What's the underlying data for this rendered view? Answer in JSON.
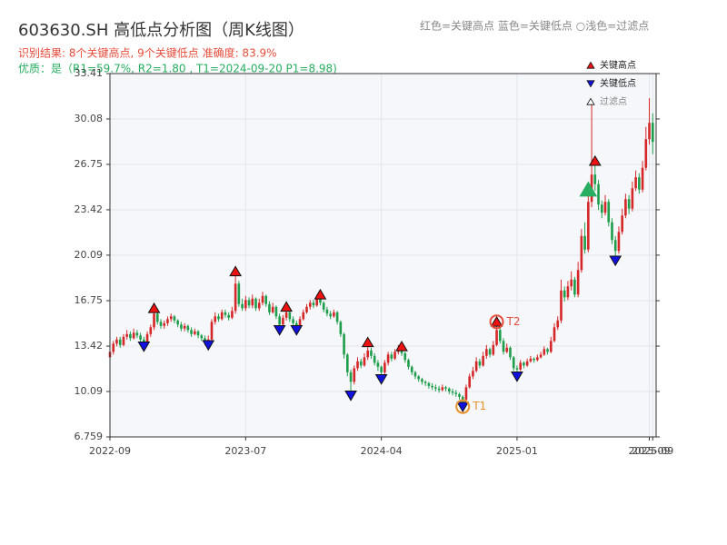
{
  "chart_data": {
    "type": "candlestick",
    "title": "603630.SH 高低点分析图（周K线图）",
    "subtitle": "识别结果: 8个关键高点, 9个关键低点  准确度: 83.9%",
    "note": "优质：是（R1=59.7%, R2=1.80 , T1=2024-09-20 P1=8.98)",
    "color_note": "红色=关键高点    蓝色=关键低点  ○浅色=过滤点",
    "up_color": "#d62728",
    "down_color": "#1e9e4a",
    "grid": true,
    "xlim": [
      0,
      161
    ],
    "xticks": [
      {
        "value": 0,
        "label": "2022-09"
      },
      {
        "value": 40,
        "label": "2023-07"
      },
      {
        "value": 80,
        "label": "2024-04"
      },
      {
        "value": 120,
        "label": "2025-01"
      },
      {
        "value": 159,
        "label": "2025-09"
      },
      {
        "value": 160,
        "label": "2025-09"
      }
    ],
    "ylim": [
      6.759,
      33.41
    ],
    "yticks": [
      6.759,
      10.09,
      13.42,
      16.75,
      20.09,
      23.42,
      26.75,
      30.08,
      33.41
    ],
    "ohlc": [
      [
        12.6,
        13.2,
        12.3,
        13.0
      ],
      [
        13.0,
        13.8,
        12.8,
        13.6
      ],
      [
        13.6,
        14.1,
        13.4,
        13.9
      ],
      [
        13.9,
        14.1,
        13.3,
        13.5
      ],
      [
        13.5,
        14.3,
        13.4,
        14.1
      ],
      [
        14.1,
        14.6,
        13.9,
        14.3
      ],
      [
        14.3,
        14.5,
        13.8,
        14.0
      ],
      [
        14.0,
        14.7,
        13.9,
        14.4
      ],
      [
        14.4,
        14.6,
        14.0,
        14.2
      ],
      [
        14.2,
        14.4,
        13.7,
        13.9
      ],
      [
        13.9,
        14.1,
        13.4,
        13.6
      ],
      [
        13.6,
        14.5,
        13.5,
        14.3
      ],
      [
        14.3,
        15.0,
        14.1,
        14.8
      ],
      [
        14.8,
        16.2,
        14.6,
        15.8
      ],
      [
        15.8,
        16.0,
        15.0,
        15.2
      ],
      [
        15.2,
        15.4,
        14.7,
        14.9
      ],
      [
        14.9,
        15.3,
        14.7,
        15.1
      ],
      [
        15.1,
        15.6,
        14.9,
        15.4
      ],
      [
        15.4,
        15.8,
        15.2,
        15.6
      ],
      [
        15.6,
        15.7,
        15.1,
        15.3
      ],
      [
        15.3,
        15.4,
        14.8,
        15.0
      ],
      [
        15.0,
        15.2,
        14.5,
        14.7
      ],
      [
        14.7,
        15.1,
        14.5,
        14.9
      ],
      [
        14.9,
        15.0,
        14.4,
        14.6
      ],
      [
        14.6,
        14.8,
        14.1,
        14.3
      ],
      [
        14.3,
        14.7,
        14.2,
        14.5
      ],
      [
        14.5,
        14.6,
        14.0,
        14.2
      ],
      [
        14.2,
        14.3,
        13.8,
        14.0
      ],
      [
        14.0,
        14.2,
        13.5,
        13.8
      ],
      [
        13.8,
        14.2,
        13.5,
        13.9
      ],
      [
        13.9,
        15.4,
        13.8,
        15.2
      ],
      [
        15.2,
        15.9,
        15.0,
        15.6
      ],
      [
        15.6,
        15.8,
        15.2,
        15.4
      ],
      [
        15.4,
        16.1,
        15.3,
        15.9
      ],
      [
        15.9,
        16.1,
        15.5,
        15.7
      ],
      [
        15.7,
        15.9,
        15.3,
        15.5
      ],
      [
        15.5,
        16.3,
        15.4,
        16.0
      ],
      [
        16.0,
        18.9,
        15.8,
        18.0
      ],
      [
        18.0,
        18.2,
        16.3,
        16.5
      ],
      [
        16.5,
        16.9,
        16.0,
        16.2
      ],
      [
        16.2,
        17.1,
        16.0,
        16.8
      ],
      [
        16.8,
        17.0,
        16.2,
        16.4
      ],
      [
        16.4,
        17.2,
        16.2,
        16.9
      ],
      [
        16.9,
        17.0,
        16.0,
        16.2
      ],
      [
        16.2,
        16.9,
        16.0,
        16.6
      ],
      [
        16.6,
        17.4,
        16.4,
        17.1
      ],
      [
        17.1,
        17.2,
        16.3,
        16.5
      ],
      [
        16.5,
        16.7,
        15.7,
        15.9
      ],
      [
        15.9,
        16.6,
        15.8,
        16.3
      ],
      [
        16.3,
        16.4,
        15.4,
        15.6
      ],
      [
        15.6,
        15.8,
        14.6,
        15.0
      ],
      [
        15.0,
        15.7,
        14.9,
        15.5
      ],
      [
        15.5,
        16.3,
        15.3,
        15.9
      ],
      [
        15.9,
        16.0,
        15.2,
        15.4
      ],
      [
        15.4,
        15.6,
        14.9,
        15.1
      ],
      [
        15.1,
        15.3,
        14.6,
        14.9
      ],
      [
        14.9,
        15.6,
        14.8,
        15.4
      ],
      [
        15.4,
        16.1,
        15.3,
        15.9
      ],
      [
        15.9,
        16.5,
        15.8,
        16.3
      ],
      [
        16.3,
        16.8,
        16.1,
        16.6
      ],
      [
        16.6,
        16.8,
        16.2,
        16.4
      ],
      [
        16.4,
        17.2,
        16.3,
        16.9
      ],
      [
        16.9,
        17.2,
        16.4,
        16.6
      ],
      [
        16.6,
        16.7,
        15.9,
        16.1
      ],
      [
        16.1,
        16.3,
        15.6,
        15.8
      ],
      [
        15.8,
        16.0,
        15.4,
        15.6
      ],
      [
        15.6,
        16.1,
        15.5,
        15.9
      ],
      [
        15.9,
        16.0,
        15.0,
        15.2
      ],
      [
        15.2,
        15.3,
        14.1,
        14.3
      ],
      [
        14.3,
        14.4,
        12.5,
        12.8
      ],
      [
        12.8,
        12.9,
        11.2,
        11.5
      ],
      [
        11.5,
        11.7,
        9.8,
        10.8
      ],
      [
        10.8,
        12.0,
        10.6,
        11.8
      ],
      [
        11.8,
        12.6,
        11.6,
        12.3
      ],
      [
        12.3,
        12.5,
        11.8,
        12.0
      ],
      [
        12.0,
        12.9,
        11.9,
        12.6
      ],
      [
        12.6,
        13.7,
        12.4,
        13.1
      ],
      [
        13.1,
        13.3,
        12.5,
        12.7
      ],
      [
        12.7,
        12.9,
        12.0,
        12.2
      ],
      [
        12.2,
        12.4,
        11.6,
        11.9
      ],
      [
        11.9,
        12.0,
        11.0,
        11.5
      ],
      [
        11.5,
        12.4,
        11.3,
        12.2
      ],
      [
        12.2,
        13.0,
        12.0,
        12.8
      ],
      [
        12.8,
        13.0,
        12.3,
        12.5
      ],
      [
        12.5,
        13.2,
        12.4,
        13.0
      ],
      [
        13.0,
        13.5,
        12.8,
        13.3
      ],
      [
        13.3,
        13.4,
        12.7,
        12.9
      ],
      [
        12.9,
        13.0,
        12.2,
        12.4
      ],
      [
        12.4,
        12.5,
        11.7,
        11.9
      ],
      [
        11.9,
        12.0,
        11.3,
        11.5
      ],
      [
        11.5,
        11.6,
        11.0,
        11.2
      ],
      [
        11.2,
        11.3,
        10.8,
        11.0
      ],
      [
        11.0,
        11.1,
        10.6,
        10.8
      ],
      [
        10.8,
        10.9,
        10.5,
        10.7
      ],
      [
        10.7,
        10.8,
        10.3,
        10.5
      ],
      [
        10.5,
        10.7,
        10.2,
        10.4
      ],
      [
        10.4,
        10.6,
        10.1,
        10.3
      ],
      [
        10.3,
        10.5,
        10.0,
        10.2
      ],
      [
        10.2,
        10.6,
        10.1,
        10.4
      ],
      [
        10.4,
        10.5,
        10.1,
        10.3
      ],
      [
        10.3,
        10.4,
        9.9,
        10.1
      ],
      [
        10.1,
        10.3,
        9.8,
        10.0
      ],
      [
        10.0,
        10.2,
        9.7,
        9.9
      ],
      [
        9.9,
        10.0,
        9.5,
        9.7
      ],
      [
        9.7,
        9.8,
        8.98,
        9.5
      ],
      [
        9.5,
        10.6,
        9.4,
        10.4
      ],
      [
        10.4,
        11.4,
        10.3,
        11.2
      ],
      [
        11.2,
        11.9,
        11.0,
        11.6
      ],
      [
        11.6,
        12.6,
        11.5,
        12.3
      ],
      [
        12.3,
        12.5,
        11.8,
        12.0
      ],
      [
        12.0,
        13.0,
        11.9,
        12.7
      ],
      [
        12.7,
        13.5,
        12.5,
        13.2
      ],
      [
        13.2,
        13.3,
        12.6,
        12.8
      ],
      [
        12.8,
        13.8,
        12.7,
        13.5
      ],
      [
        13.5,
        15.2,
        13.4,
        14.6
      ],
      [
        14.6,
        14.8,
        13.6,
        13.8
      ],
      [
        13.8,
        14.0,
        12.8,
        13.0
      ],
      [
        13.0,
        13.6,
        12.9,
        13.3
      ],
      [
        13.3,
        13.4,
        12.4,
        12.6
      ],
      [
        12.6,
        12.7,
        11.6,
        11.8
      ],
      [
        11.8,
        12.0,
        11.2,
        11.7
      ],
      [
        11.7,
        12.4,
        11.6,
        12.2
      ],
      [
        12.2,
        12.3,
        11.8,
        12.0
      ],
      [
        12.0,
        12.5,
        11.9,
        12.3
      ],
      [
        12.3,
        12.7,
        12.2,
        12.5
      ],
      [
        12.5,
        12.6,
        12.2,
        12.4
      ],
      [
        12.4,
        12.8,
        12.3,
        12.6
      ],
      [
        12.6,
        13.0,
        12.5,
        12.8
      ],
      [
        12.8,
        13.4,
        12.7,
        13.2
      ],
      [
        13.2,
        13.3,
        12.8,
        13.0
      ],
      [
        13.0,
        14.1,
        12.9,
        13.8
      ],
      [
        13.8,
        15.1,
        13.7,
        14.8
      ],
      [
        14.8,
        15.6,
        14.6,
        15.3
      ],
      [
        15.3,
        18.3,
        15.1,
        17.5
      ],
      [
        17.5,
        17.8,
        16.7,
        17.0
      ],
      [
        17.0,
        18.2,
        16.8,
        17.8
      ],
      [
        17.8,
        18.9,
        17.5,
        18.3
      ],
      [
        18.3,
        18.5,
        17.0,
        17.2
      ],
      [
        17.2,
        19.6,
        17.0,
        19.0
      ],
      [
        19.0,
        22.0,
        18.8,
        21.5
      ],
      [
        21.5,
        22.5,
        20.2,
        20.5
      ],
      [
        20.5,
        24.6,
        20.3,
        24.0
      ],
      [
        24.0,
        31.2,
        23.6,
        26.0
      ],
      [
        26.0,
        27.0,
        24.8,
        25.3
      ],
      [
        25.3,
        25.6,
        23.4,
        23.8
      ],
      [
        23.8,
        24.1,
        22.8,
        23.2
      ],
      [
        23.2,
        24.5,
        23.0,
        24.0
      ],
      [
        24.0,
        24.2,
        22.2,
        22.5
      ],
      [
        22.5,
        22.8,
        20.9,
        21.2
      ],
      [
        21.2,
        21.5,
        19.7,
        20.4
      ],
      [
        20.4,
        22.2,
        20.2,
        21.8
      ],
      [
        21.8,
        23.5,
        21.6,
        23.0
      ],
      [
        23.0,
        24.6,
        22.8,
        24.2
      ],
      [
        24.2,
        24.5,
        23.1,
        23.5
      ],
      [
        23.5,
        25.5,
        23.3,
        25.0
      ],
      [
        25.0,
        26.3,
        24.8,
        25.8
      ],
      [
        25.8,
        26.1,
        24.6,
        24.9
      ],
      [
        24.9,
        27.0,
        24.7,
        26.5
      ],
      [
        26.5,
        29.5,
        26.3,
        28.6
      ],
      [
        28.6,
        31.6,
        28.2,
        29.8
      ],
      [
        29.8,
        30.5,
        27.5,
        28.4
      ]
    ],
    "markers": [
      {
        "name": "关键高点",
        "color": "#ee1111",
        "shape": "up",
        "x": [
          13,
          37,
          52,
          62,
          76,
          86,
          114,
          143
        ],
        "values": [
          16.2,
          18.9,
          16.3,
          17.2,
          13.7,
          13.4,
          15.2,
          27.0
        ]
      },
      {
        "name": "关键低点",
        "color": "#1111dd",
        "shape": "down",
        "x": [
          10,
          29,
          50,
          55,
          71,
          80,
          104,
          120,
          149
        ],
        "values": [
          13.4,
          13.5,
          14.6,
          14.6,
          9.8,
          11.0,
          8.98,
          11.2,
          19.7
        ]
      },
      {
        "name": "过滤点",
        "color": "#27ae60",
        "shape": "filter",
        "x": [
          141
        ],
        "values": [
          24.9
        ]
      }
    ],
    "targets": [
      {
        "label": "T1",
        "color": "#e8902a",
        "x": 104,
        "value": 8.98
      },
      {
        "label": "T2",
        "color": "#e74c3c",
        "x": 114,
        "value": 15.2
      }
    ]
  }
}
